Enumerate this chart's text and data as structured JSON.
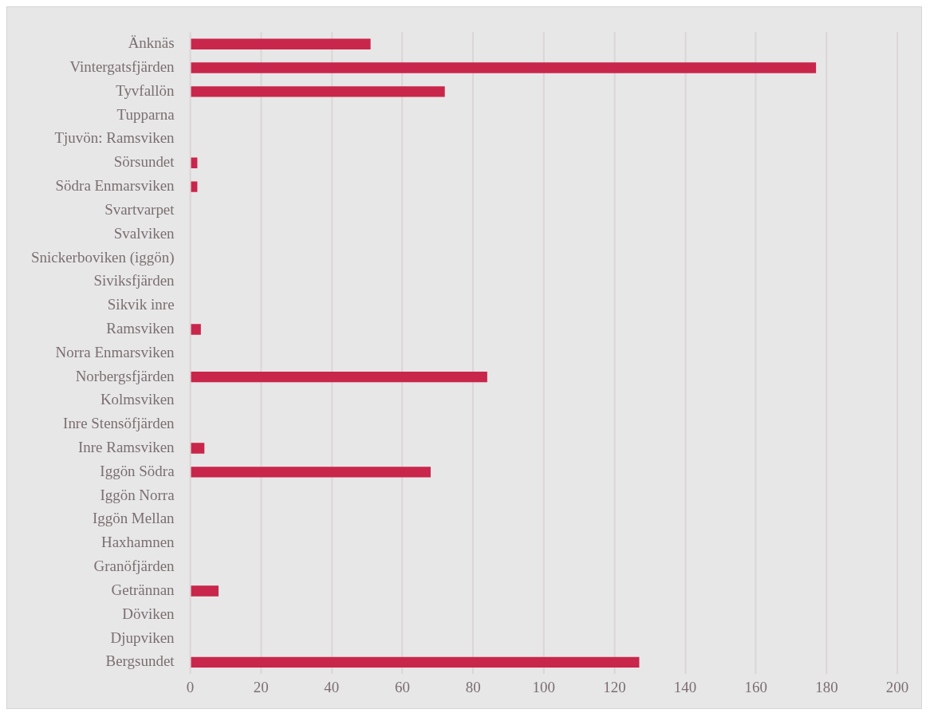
{
  "chart_data": {
    "type": "bar",
    "orientation": "horizontal",
    "categories": [
      "Änknäs",
      "Vintergatsfjärden",
      "Tyvfallön",
      "Tupparna",
      "Tjuvön: Ramsviken",
      "Sörsundet",
      "Södra Enmarsviken",
      "Svartvarpet",
      "Svalviken",
      "Snickerboviken (iggön)",
      "Siviksfjärden",
      "Sikvik inre",
      "Ramsviken",
      "Norra Enmarsviken",
      "Norbergsfjärden",
      "Kolmsviken",
      "Inre Stensöfjärden",
      "Inre Ramsviken",
      "Iggön Södra",
      "Iggön Norra",
      "Iggön Mellan",
      "Haxhamnen",
      "Granöfjärden",
      "Getrännan",
      "Döviken",
      "Djupviken",
      "Bergsundet"
    ],
    "values": [
      51,
      177,
      72,
      0,
      0,
      2,
      2,
      0,
      0,
      0,
      0,
      0,
      3,
      0,
      84,
      0,
      0,
      4,
      68,
      0,
      0,
      0,
      0,
      8,
      0,
      0,
      127
    ],
    "color": "#c9264b",
    "xlim": [
      0,
      200
    ],
    "xticks": [
      0,
      20,
      40,
      60,
      80,
      100,
      120,
      140,
      160,
      180,
      200
    ],
    "grid": "x",
    "legend": false
  }
}
